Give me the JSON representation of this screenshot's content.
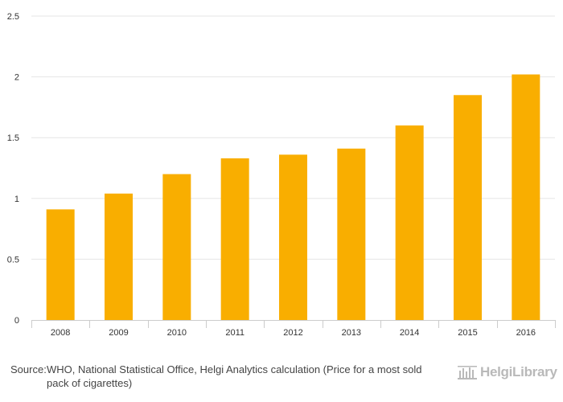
{
  "chart_data": {
    "type": "bar",
    "categories": [
      "2008",
      "2009",
      "2010",
      "2011",
      "2012",
      "2013",
      "2014",
      "2015",
      "2016"
    ],
    "values": [
      0.91,
      1.04,
      1.2,
      1.33,
      1.36,
      1.41,
      1.6,
      1.85,
      2.02
    ],
    "ylim": [
      0,
      2.5
    ],
    "yticks": [
      "0",
      "0.5",
      "1",
      "1.5",
      "2",
      "2.5"
    ],
    "grid": true,
    "bar_color": "#f9ae00",
    "title": "",
    "xlabel": "",
    "ylabel": ""
  },
  "footer": {
    "source_label": "Source:",
    "source_text": "WHO, National Statistical Office, Helgi Analytics calculation (Price for a most sold pack of cigarettes)",
    "logo_text": "HelgiLibrary",
    "logo_icon": "library-building-icon"
  }
}
